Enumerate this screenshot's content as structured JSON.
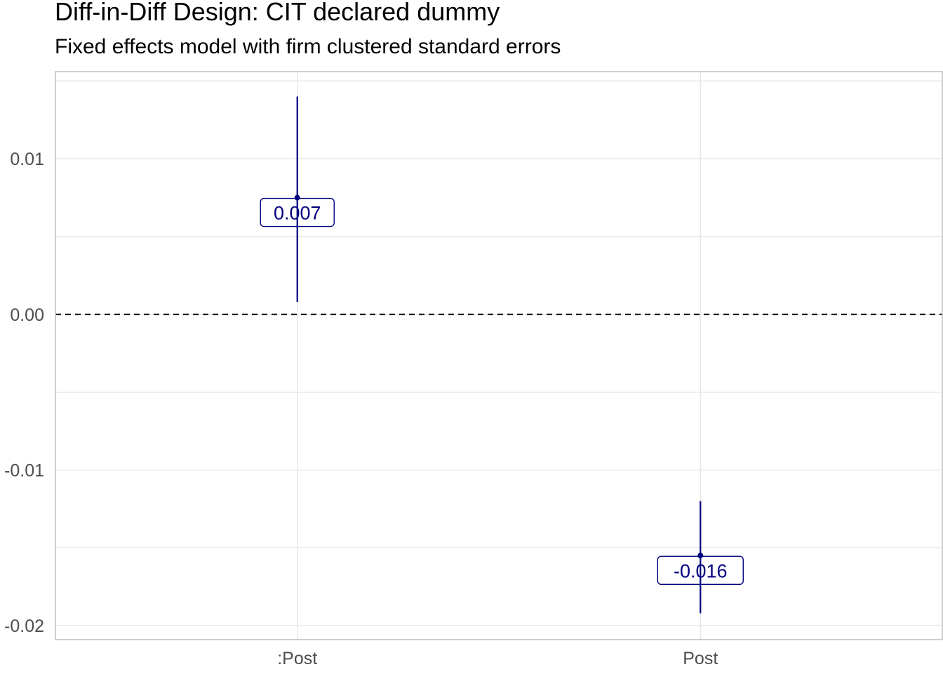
{
  "chart_data": {
    "type": "scatter",
    "title": "Diff-in-Diff Design: CIT declared dummy",
    "subtitle": "Fixed effects model with firm clustered standard errors",
    "xlabel": "",
    "ylabel": "",
    "categories": [
      ":Post",
      "Post"
    ],
    "points": [
      {
        "term": ":Post",
        "estimate": 0.0075,
        "low": 0.0008,
        "high": 0.014,
        "label": "0.007"
      },
      {
        "term": "Post",
        "estimate": -0.0155,
        "low": -0.0192,
        "high": -0.012,
        "label": "-0.016"
      }
    ],
    "yticks": [
      0.01,
      0.0,
      -0.01,
      -0.02
    ],
    "ytick_labels": [
      "0.01",
      "0.00",
      "-0.01",
      "-0.02"
    ],
    "ylim": [
      -0.0209,
      0.0156
    ],
    "reference_line": 0,
    "grid": true,
    "legend": "none",
    "colors": {
      "series": "#00007f",
      "reference": "#000000",
      "grid": "#e6e6e6",
      "border": "#bdbdbd",
      "tick_text": "#4d4d4d"
    }
  }
}
